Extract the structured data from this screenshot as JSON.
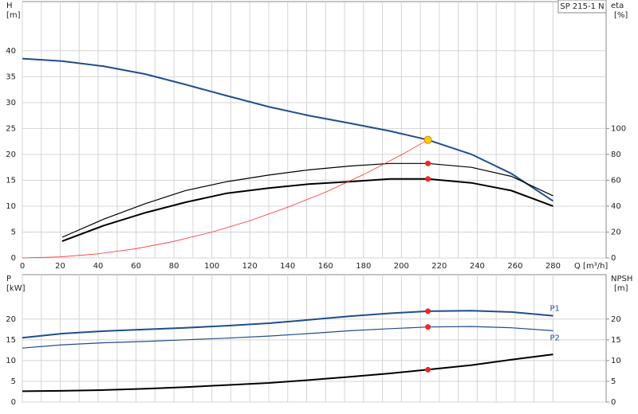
{
  "chart_data": [
    {
      "type": "line",
      "title": "SP 215-1 N",
      "xlabel": "Q [m³/h]",
      "ylabel": "H",
      "yunit": "[m]",
      "y2label": "eta",
      "y2unit": "[%]",
      "xlim": [
        0,
        308
      ],
      "xticks": [
        0,
        20,
        40,
        60,
        80,
        100,
        120,
        140,
        160,
        180,
        200,
        220,
        240,
        260,
        280
      ],
      "ylim": [
        0,
        49.5
      ],
      "yticks": [
        0,
        5,
        10,
        15,
        20,
        25,
        30,
        35,
        40
      ],
      "y2lim": [
        0,
        198
      ],
      "y2ticks": [
        0,
        20,
        40,
        60,
        80,
        100
      ],
      "grid": true,
      "series": [
        {
          "color": "#1f4e8c",
          "width": 2,
          "x": [
            0,
            21,
            43,
            65,
            86,
            108,
            130,
            151,
            173,
            194,
            214,
            237,
            258,
            280
          ],
          "values": [
            38.5,
            38,
            37,
            35.5,
            33.5,
            31.3,
            29.2,
            27.5,
            26,
            24.5,
            22.8,
            20,
            16.3,
            11
          ]
        },
        {
          "color": "#000000",
          "width": 1.2,
          "axis": "y2",
          "x": [
            21,
            43,
            65,
            86,
            108,
            130,
            151,
            173,
            194,
            214,
            237,
            258,
            280
          ],
          "values": [
            16,
            30,
            42,
            52,
            59,
            64,
            68,
            71,
            73,
            73,
            70,
            63,
            48
          ]
        },
        {
          "color": "#000000",
          "width": 2,
          "axis": "y2",
          "x": [
            21,
            43,
            65,
            86,
            108,
            130,
            151,
            173,
            194,
            214,
            237,
            258,
            280
          ],
          "values": [
            13,
            25,
            35,
            43,
            50,
            54,
            57,
            59,
            61,
            61,
            58,
            52,
            40
          ]
        },
        {
          "color": "#ff3030",
          "width": 0.8,
          "x": [
            0,
            20,
            40,
            60,
            80,
            100,
            120,
            140,
            160,
            180,
            200,
            214
          ],
          "values": [
            0,
            0.2,
            0.8,
            1.8,
            3.2,
            5,
            7.2,
            9.8,
            12.7,
            16.1,
            19.9,
            22.8
          ]
        }
      ],
      "markers": [
        {
          "x": 214,
          "y": 22.8,
          "color": "#f5d000"
        },
        {
          "x": 214,
          "y": 73,
          "color": "#ff2020",
          "axis": "y2"
        },
        {
          "x": 214,
          "y": 61,
          "color": "#ff2020",
          "axis": "y2"
        }
      ]
    },
    {
      "type": "line",
      "ylabel": "P",
      "yunit": "[kW]",
      "y2label": "NPSH",
      "y2unit": "[m]",
      "xlim": [
        0,
        308
      ],
      "xticks": [
        0,
        20,
        40,
        60,
        80,
        100,
        120,
        140,
        160,
        180,
        200,
        220,
        240,
        260,
        280
      ],
      "xtick_labels": false,
      "ylim": [
        0,
        30.7
      ],
      "yticks": [
        0,
        5,
        10,
        15,
        20
      ],
      "y2lim": [
        0,
        30.7
      ],
      "y2ticks": [
        0,
        5,
        10,
        15,
        20
      ],
      "grid": true,
      "series": [
        {
          "name": "P1",
          "color": "#1f4e8c",
          "width": 2,
          "x": [
            0,
            21,
            43,
            65,
            86,
            108,
            130,
            151,
            173,
            194,
            214,
            237,
            258,
            280
          ],
          "values": [
            15.5,
            16.5,
            17.1,
            17.5,
            17.9,
            18.4,
            19,
            19.8,
            20.7,
            21.4,
            21.9,
            22,
            21.7,
            20.8
          ]
        },
        {
          "name": "P2",
          "color": "#1f4e8c",
          "width": 1.2,
          "x": [
            0,
            21,
            43,
            65,
            86,
            108,
            130,
            151,
            173,
            194,
            214,
            237,
            258,
            280
          ],
          "values": [
            13,
            13.8,
            14.3,
            14.6,
            15,
            15.4,
            15.9,
            16.5,
            17.2,
            17.7,
            18.1,
            18.2,
            17.9,
            17.2
          ]
        },
        {
          "color": "#000000",
          "width": 2,
          "axis": "y2",
          "x": [
            0,
            21,
            43,
            65,
            86,
            108,
            130,
            151,
            173,
            194,
            214,
            237,
            258,
            280
          ],
          "values": [
            2.6,
            2.7,
            2.9,
            3.2,
            3.6,
            4.1,
            4.6,
            5.3,
            6.1,
            6.9,
            7.8,
            8.9,
            10.2,
            11.5
          ]
        }
      ],
      "markers": [
        {
          "x": 214,
          "y": 21.9,
          "color": "#ff2020"
        },
        {
          "x": 214,
          "y": 18.1,
          "color": "#ff2020"
        },
        {
          "x": 214,
          "y": 7.8,
          "color": "#ff2020",
          "axis": "y2"
        }
      ]
    }
  ]
}
